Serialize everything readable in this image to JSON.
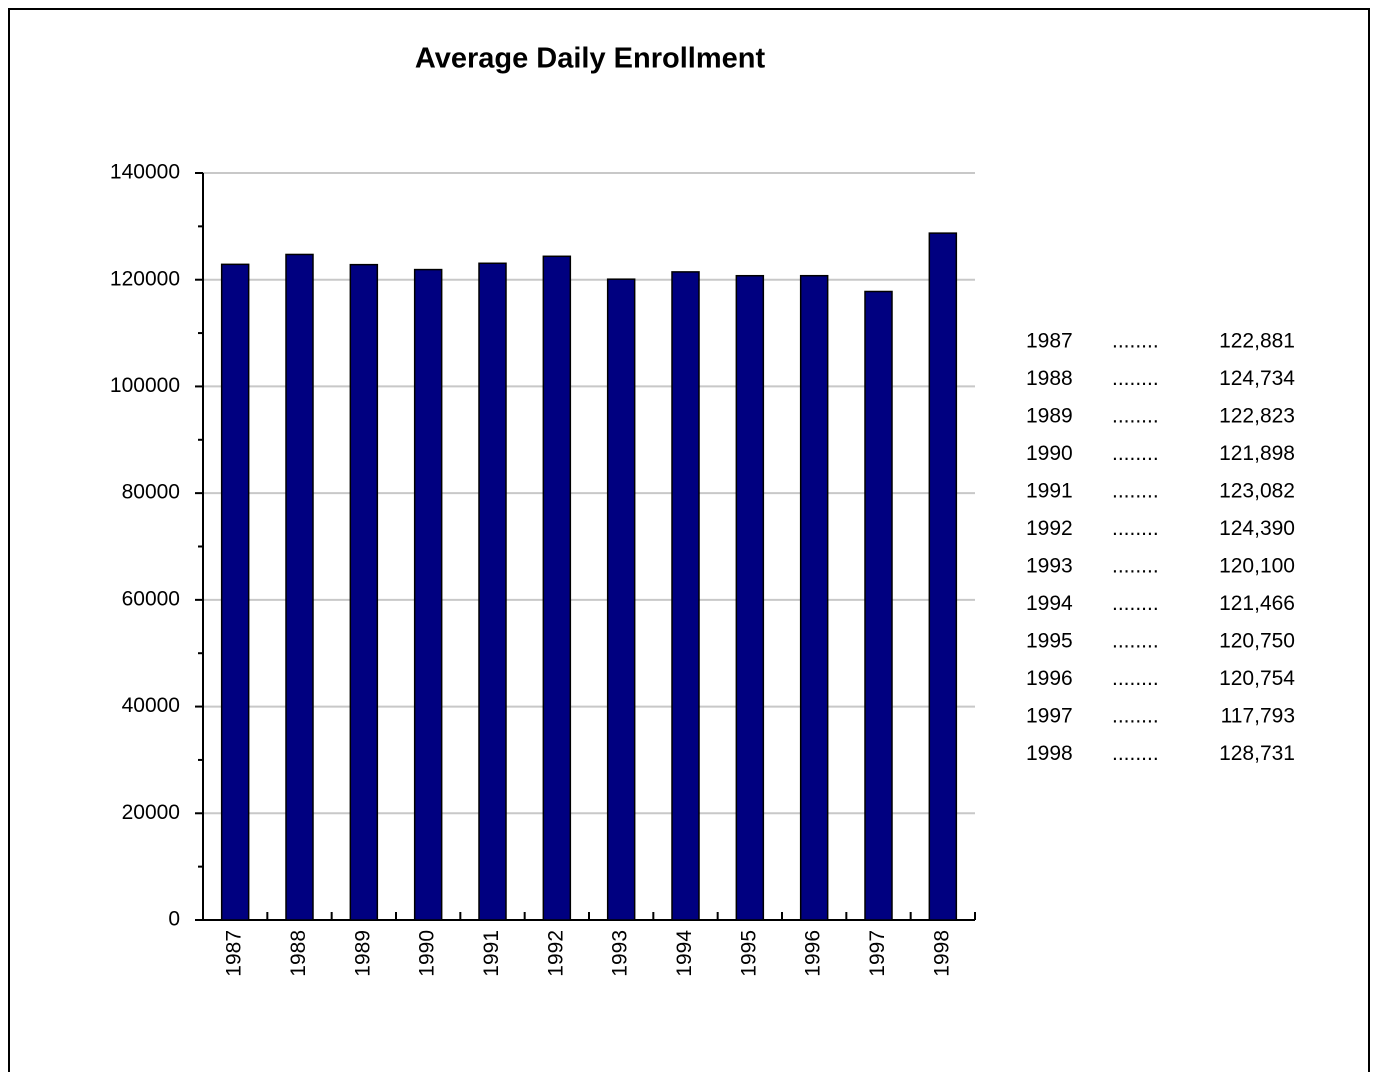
{
  "chart_data": {
    "type": "bar",
    "title": "Average Daily Enrollment",
    "categories": [
      "1987",
      "1988",
      "1989",
      "1990",
      "1991",
      "1992",
      "1993",
      "1994",
      "1995",
      "1996",
      "1997",
      "1998"
    ],
    "values": [
      122881,
      124734,
      122823,
      121898,
      123082,
      124390,
      120100,
      121466,
      120750,
      120754,
      117793,
      128731
    ],
    "value_labels": [
      "122,881",
      "124,734",
      "122,823",
      "121,898",
      "123,082",
      "124,390",
      "120,100",
      "121,466",
      "120,750",
      "120,754",
      "117,793",
      "128,731"
    ],
    "value_label_leader": "........",
    "color": "#000080",
    "ylim": [
      0,
      140000
    ],
    "yticks": [
      0,
      20000,
      40000,
      60000,
      80000,
      100000,
      120000,
      140000
    ],
    "yticks_minor": [
      10000,
      30000,
      50000,
      70000,
      90000,
      110000,
      130000
    ],
    "grid": true
  }
}
